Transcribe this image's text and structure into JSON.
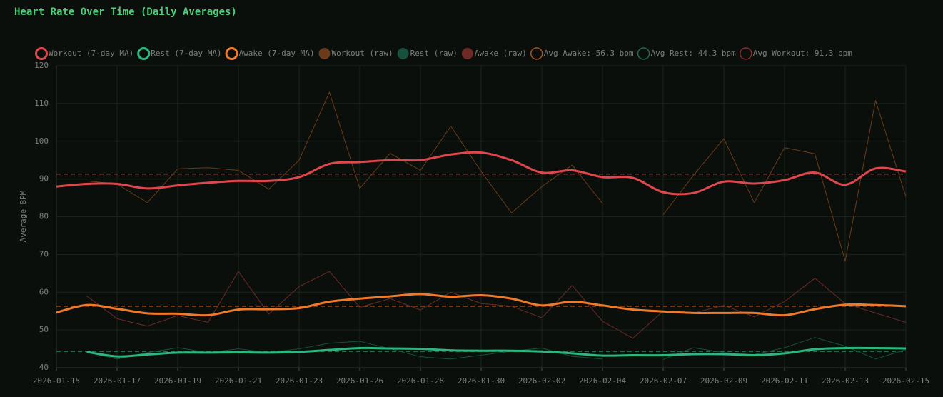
{
  "chart_data": {
    "type": "line",
    "title": "Heart Rate Over Time (Daily Averages)",
    "y_label": "Average BPM",
    "categories": [
      "2026-01-15",
      null,
      "2026-01-17",
      null,
      "2026-01-19",
      null,
      "2026-01-21",
      null,
      "2026-01-23",
      null,
      "2026-01-26",
      null,
      "2026-01-28",
      null,
      "2026-01-30",
      null,
      "2026-02-02",
      null,
      "2026-02-04",
      null,
      "2026-02-07",
      null,
      "2026-02-09",
      null,
      "2026-02-11",
      null,
      "2026-02-13",
      null,
      "2026-02-15"
    ],
    "ylim": [
      40,
      120
    ],
    "yticks": [
      40,
      50,
      60,
      70,
      80,
      90,
      100,
      110,
      120
    ],
    "grid": true,
    "series": [
      {
        "name": "Workout (7-day MA)",
        "color": "#e0474c",
        "style": "smooth",
        "values": [
          88,
          88.7,
          88.7,
          87.5,
          88.3,
          89,
          89.5,
          89.5,
          90.5,
          94,
          94.5,
          95,
          95,
          96.5,
          97,
          95,
          91.7,
          92.3,
          90.5,
          90.3,
          86.5,
          86.3,
          89.3,
          88.8,
          89.7,
          91.7,
          88.5,
          92.8,
          92
        ]
      },
      {
        "name": "Rest (7-day MA)",
        "color": "#2ab880",
        "style": "smooth",
        "values": [
          null,
          44.2,
          43,
          43.5,
          44,
          44,
          44.1,
          44,
          44.2,
          44.7,
          45.2,
          45.1,
          45,
          44.6,
          44.5,
          44.5,
          44.3,
          43.8,
          43.2,
          43.3,
          43.3,
          43.6,
          43.6,
          43.3,
          43.8,
          44.9,
          45.2,
          45.2,
          45.1
        ]
      },
      {
        "name": "Awake (7-day MA)",
        "color": "#f07a2a",
        "style": "smooth",
        "values": [
          54.6,
          56.6,
          55.6,
          54.4,
          54.3,
          53.9,
          55.4,
          55.5,
          55.8,
          57.5,
          58.3,
          58.9,
          59.5,
          58.8,
          59.2,
          58.3,
          56.5,
          57.5,
          56.5,
          55.4,
          54.9,
          54.5,
          54.5,
          54.5,
          53.9,
          55.5,
          56.7,
          56.6,
          56.3
        ]
      },
      {
        "name": "Workout (raw)",
        "color": "#6b3a18",
        "style": "raw",
        "values": [
          null,
          89.5,
          88.7,
          83.7,
          92.7,
          93,
          92.3,
          87.3,
          95,
          113,
          87.5,
          96.8,
          92.3,
          104,
          92,
          81,
          88,
          93.7,
          83.5,
          null,
          80.5,
          91,
          100.7,
          83.7,
          98.3,
          96.7,
          68.2,
          110.8,
          85.3
        ]
      },
      {
        "name": "Rest (raw)",
        "color": "#17503e",
        "style": "raw",
        "values": [
          null,
          44.2,
          42.3,
          44,
          45.3,
          44,
          45,
          44,
          45,
          46.5,
          47,
          45,
          42.9,
          42.3,
          43.3,
          44.4,
          45.2,
          43,
          42.3,
          null,
          42.2,
          45.3,
          44,
          43.5,
          45.3,
          48,
          45.7,
          42.3,
          44.8
        ]
      },
      {
        "name": "Awake (raw)",
        "color": "#6e2a26",
        "style": "raw",
        "values": [
          null,
          59,
          53,
          51,
          53.8,
          52,
          65.5,
          54.2,
          61.5,
          65.5,
          56,
          58.3,
          55.3,
          60,
          57,
          56.3,
          53.2,
          61.8,
          52.3,
          47.8,
          55,
          54.5,
          56.5,
          53.5,
          57.5,
          63.7,
          57,
          54.5,
          52
        ]
      }
    ],
    "reference_lines": [
      {
        "name": "Avg Awake: 56.3 bpm",
        "value": 56.3,
        "color": "#a8521c"
      },
      {
        "name": "Avg Rest: 44.3 bpm",
        "value": 44.3,
        "color": "#1f6b4c"
      },
      {
        "name": "Avg Workout: 91.3 bpm",
        "value": 91.3,
        "color": "#8a2d2d"
      }
    ]
  }
}
